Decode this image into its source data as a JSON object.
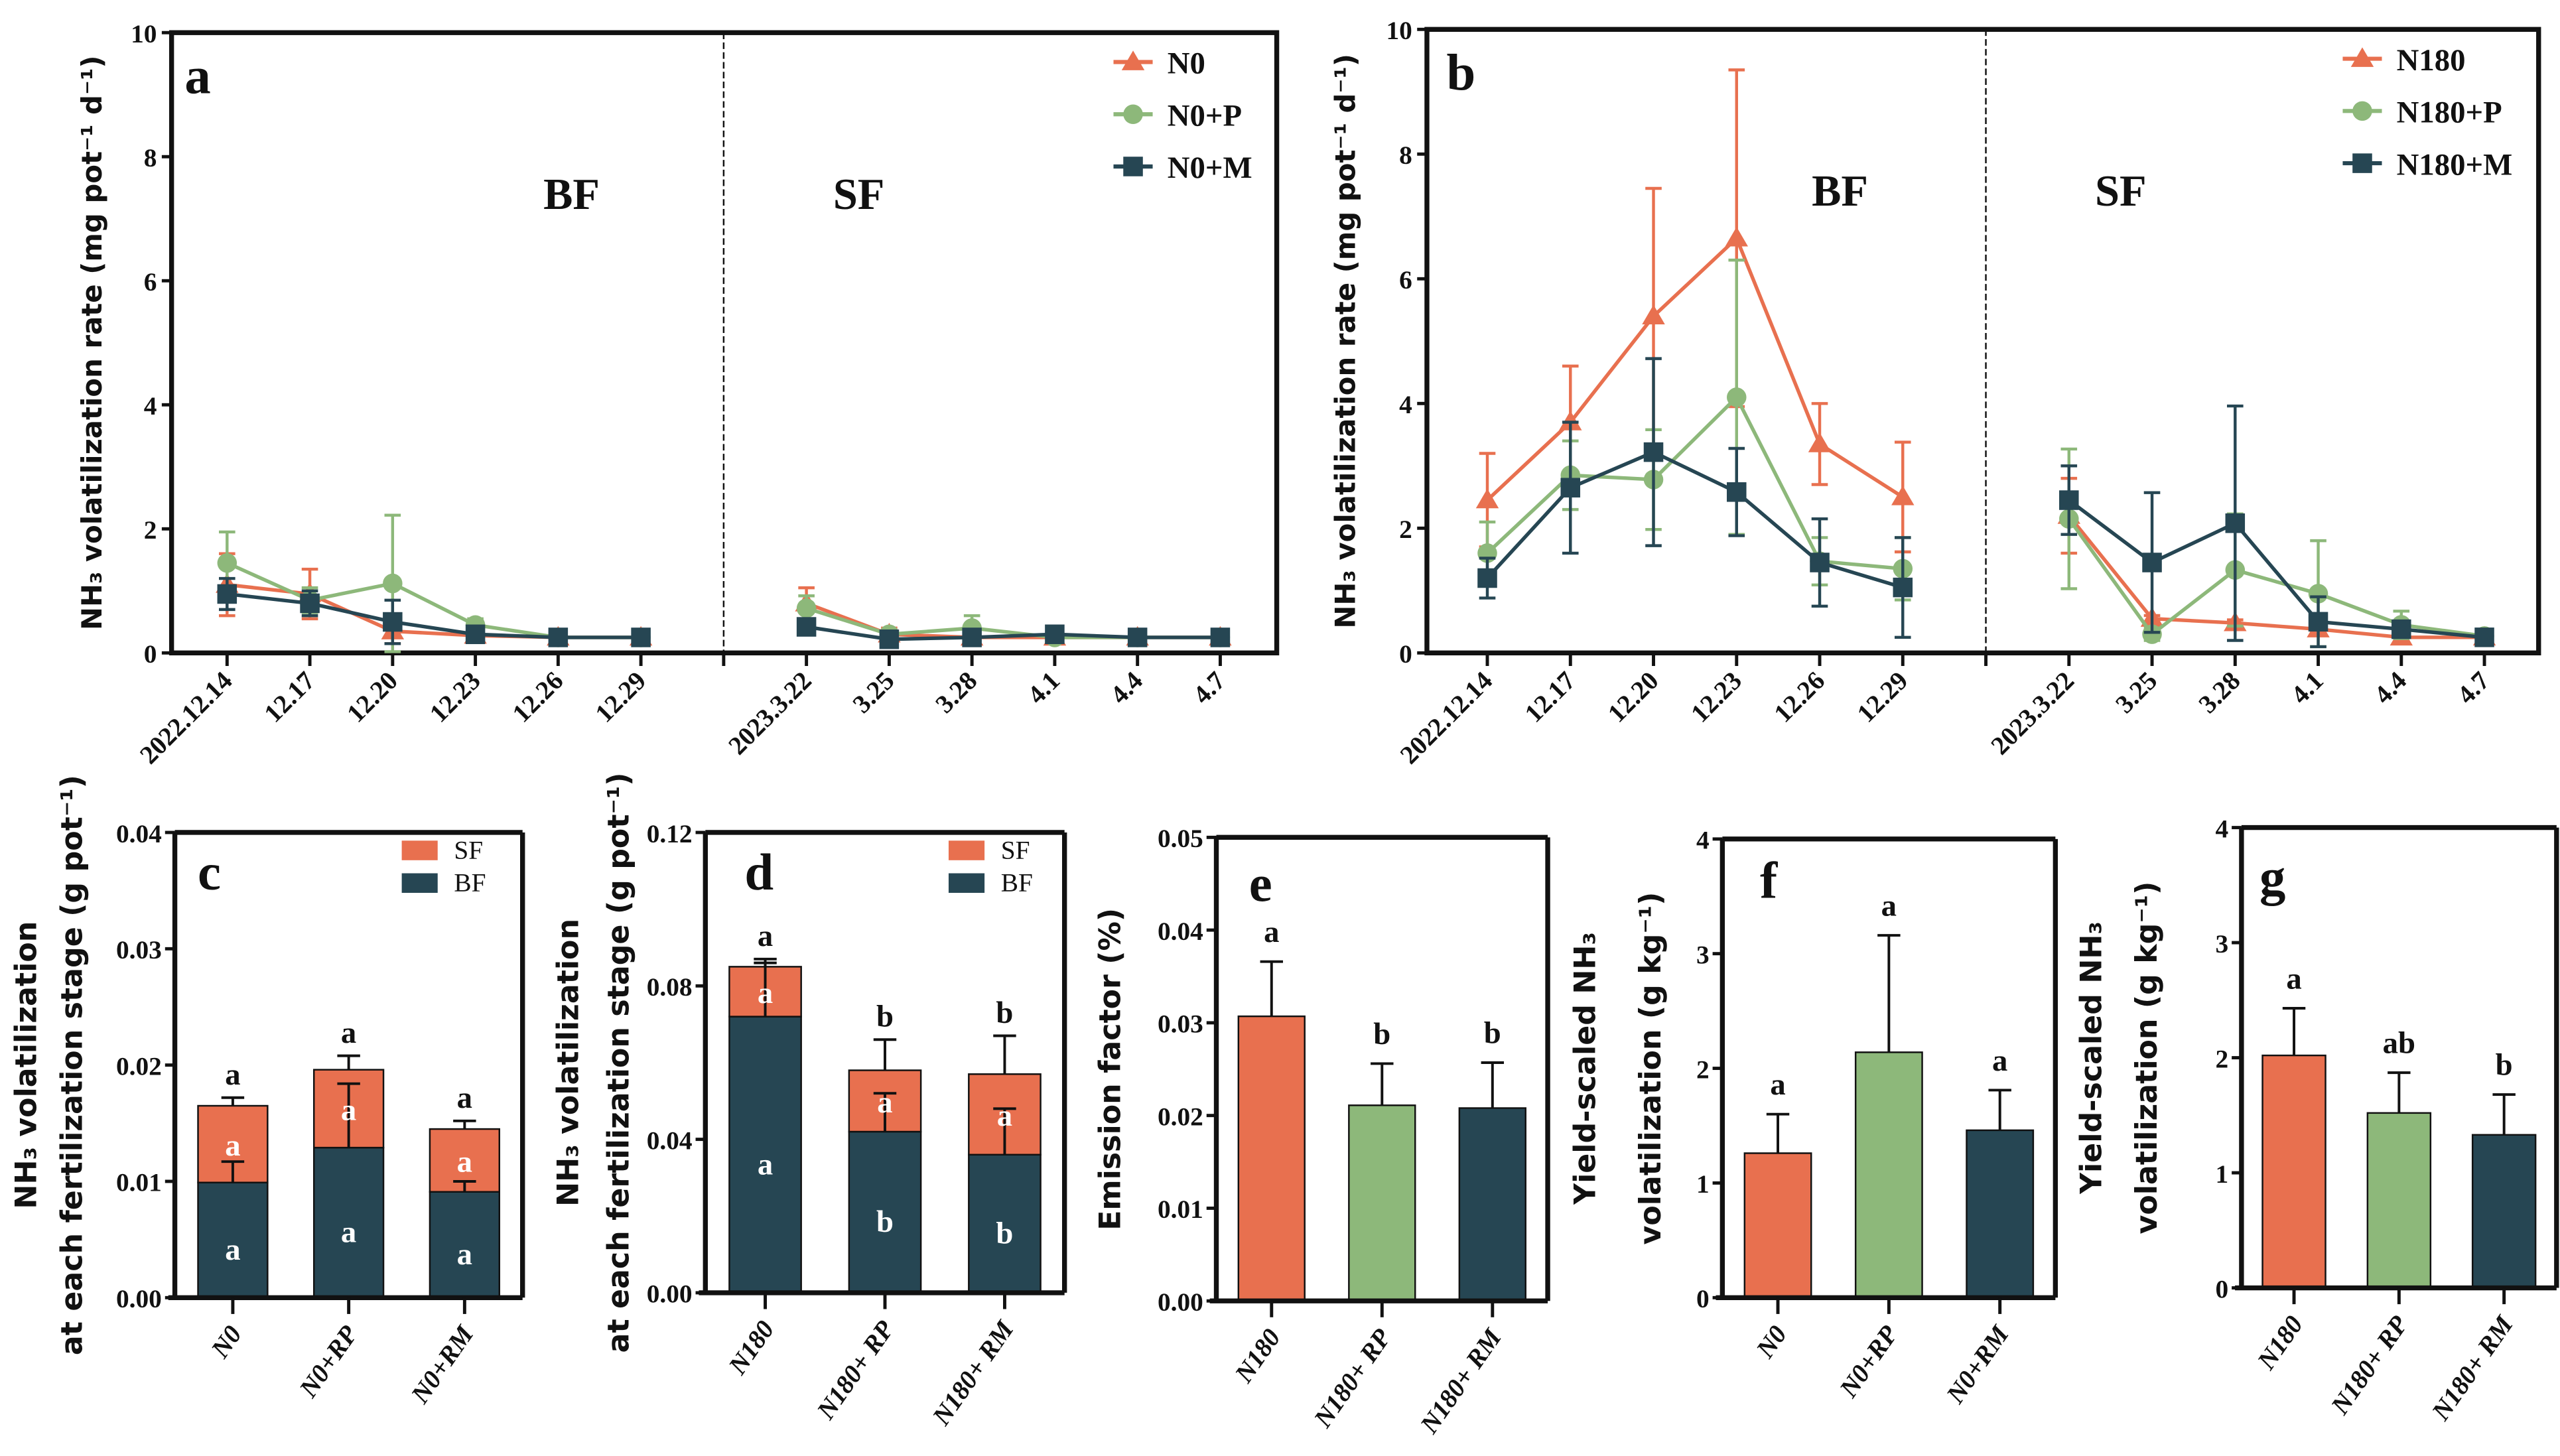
{
  "colors": {
    "orange": "#E8704F",
    "green": "#8DB87A",
    "dark": "#264653"
  },
  "chart_data": [
    {
      "panel": "a",
      "type": "line",
      "ylabel": "NH₃ volatilization rate (mg pot⁻¹ d⁻¹)",
      "ylim": [
        0,
        10
      ],
      "yticks": [
        0,
        2,
        4,
        6,
        8,
        10
      ],
      "x_labels": [
        "2022.12.14",
        "12.17",
        "12.20",
        "12.23",
        "12.26",
        "12.29",
        "2023.3.22",
        "3.25",
        "3.28",
        "4.1",
        "4.4",
        "4.7"
      ],
      "stages": [
        "BF",
        "SF"
      ],
      "legend": "top-right",
      "series": [
        {
          "name": "N0",
          "marker": "triangle",
          "color": "#E8704F",
          "values": [
            1.1,
            0.95,
            0.35,
            0.28,
            0.25,
            0.25,
            0.8,
            0.3,
            0.25,
            0.25,
            0.25,
            0.25
          ],
          "errors": [
            0.5,
            0.4,
            0.2,
            0.05,
            0.05,
            0.05,
            0.25,
            0.1,
            0.05,
            0.05,
            0.05,
            0.05
          ]
        },
        {
          "name": "N0+P",
          "marker": "circle",
          "color": "#8DB87A",
          "values": [
            1.45,
            0.85,
            1.12,
            0.45,
            0.25,
            0.25,
            0.72,
            0.3,
            0.4,
            0.25,
            0.25,
            0.25
          ],
          "errors": [
            0.5,
            0.2,
            1.1,
            0.1,
            0.05,
            0.05,
            0.2,
            0.05,
            0.2,
            0.05,
            0.05,
            0.05
          ]
        },
        {
          "name": "N0+M",
          "marker": "square",
          "color": "#264653",
          "values": [
            0.95,
            0.8,
            0.5,
            0.3,
            0.25,
            0.25,
            0.42,
            0.22,
            0.25,
            0.3,
            0.25,
            0.25
          ],
          "errors": [
            0.25,
            0.2,
            0.35,
            0.05,
            0.05,
            0.05,
            0.08,
            0.05,
            0.05,
            0.05,
            0.05,
            0.05
          ]
        }
      ]
    },
    {
      "panel": "b",
      "type": "line",
      "ylabel": "NH₃ volatilization rate (mg pot⁻¹ d⁻¹)",
      "ylim": [
        0,
        10
      ],
      "yticks": [
        0,
        2,
        4,
        6,
        8,
        10
      ],
      "x_labels": [
        "2022.12.14",
        "12.17",
        "12.20",
        "12.23",
        "12.26",
        "12.29",
        "2023.3.22",
        "3.25",
        "3.28",
        "4.1",
        "4.4",
        "4.7"
      ],
      "stages": [
        "BF",
        "SF"
      ],
      "legend": "top-right",
      "series": [
        {
          "name": "N180",
          "marker": "triangle",
          "color": "#E8704F",
          "values": [
            2.45,
            3.7,
            5.4,
            6.65,
            3.35,
            2.5,
            2.2,
            0.55,
            0.48,
            0.38,
            0.25,
            0.25
          ],
          "errors": [
            0.75,
            0.9,
            2.05,
            2.7,
            0.65,
            0.88,
            0.6,
            0.05,
            0.05,
            0.05,
            0.05,
            0.05
          ]
        },
        {
          "name": "N180+P",
          "marker": "circle",
          "color": "#8DB87A",
          "values": [
            1.6,
            2.85,
            2.78,
            4.1,
            1.47,
            1.35,
            2.15,
            0.3,
            1.33,
            0.95,
            0.45,
            0.27
          ],
          "errors": [
            0.5,
            0.55,
            0.8,
            2.2,
            0.38,
            0.5,
            1.12,
            0.1,
            0.9,
            0.85,
            0.22,
            0.05
          ]
        },
        {
          "name": "N180+M",
          "marker": "square",
          "color": "#264653",
          "values": [
            1.2,
            2.65,
            3.22,
            2.58,
            1.45,
            1.05,
            2.45,
            1.45,
            2.08,
            0.5,
            0.38,
            0.25
          ],
          "errors": [
            0.32,
            1.05,
            1.5,
            0.7,
            0.7,
            0.8,
            0.55,
            1.12,
            1.88,
            0.4,
            0.1,
            0.05
          ]
        }
      ]
    },
    {
      "panel": "c",
      "type": "stacked-bar",
      "ylabel": [
        "NH₃ volatilization",
        "at each fertilization stage (g pot⁻¹)"
      ],
      "ylim": [
        0,
        0.04
      ],
      "yticks": [
        "0.00",
        "0.01",
        "0.02",
        "0.03",
        "0.04"
      ],
      "categories": [
        "N0",
        "N0+RP",
        "N0+RM"
      ],
      "legend": "top-right",
      "series": [
        {
          "name": "BF",
          "color": "#264653",
          "values": [
            0.0099,
            0.0129,
            0.0091
          ],
          "errors": [
            0.0018,
            0.0055,
            0.0009
          ],
          "letters": [
            "a",
            "a",
            "a"
          ]
        },
        {
          "name": "SF",
          "color": "#E8704F",
          "values": [
            0.0066,
            0.0067,
            0.0054
          ],
          "errors": [
            0.0007,
            0.0012,
            0.0007
          ],
          "letters": [
            "a",
            "a",
            "a"
          ]
        }
      ],
      "total_letters": [
        "a",
        "a",
        "a"
      ]
    },
    {
      "panel": "d",
      "type": "stacked-bar",
      "ylabel": [
        "NH₃ volatilization",
        "at each fertilization stage (g pot⁻¹)"
      ],
      "ylim": [
        0,
        0.12
      ],
      "yticks": [
        "0.00",
        "0.04",
        "0.08",
        "0.12"
      ],
      "categories": [
        "N180",
        "N180+ RP",
        "N180+ RM"
      ],
      "legend": "top-right",
      "series": [
        {
          "name": "BF",
          "color": "#264653",
          "values": [
            0.072,
            0.042,
            0.036
          ],
          "errors": [
            0.014,
            0.01,
            0.012
          ],
          "letters": [
            "a",
            "b",
            "b"
          ]
        },
        {
          "name": "SF",
          "color": "#E8704F",
          "values": [
            0.013,
            0.016,
            0.021
          ],
          "errors": [
            0.002,
            0.008,
            0.01
          ],
          "letters": [
            "a",
            "a",
            "a"
          ]
        }
      ],
      "total_letters": [
        "a",
        "b",
        "b"
      ]
    },
    {
      "panel": "e",
      "type": "bar",
      "ylabel": [
        "Emission factor (%)"
      ],
      "ylim": [
        0,
        0.05
      ],
      "yticks": [
        "0.00",
        "0.01",
        "0.02",
        "0.03",
        "0.04",
        "0.05"
      ],
      "categories": [
        "N180",
        "N180+ RP",
        "N180+ RM"
      ],
      "values": [
        0.0307,
        0.0211,
        0.0208
      ],
      "errors": [
        0.0059,
        0.0045,
        0.0049
      ],
      "letters": [
        "a",
        "b",
        "b"
      ],
      "bar_colors": [
        "#E8704F",
        "#8DB87A",
        "#264653"
      ]
    },
    {
      "panel": "f",
      "type": "bar",
      "ylabel": [
        "Yield-scaled NH₃",
        "volatilization (g kg⁻¹)"
      ],
      "ylim": [
        0,
        4
      ],
      "yticks": [
        "0",
        "1",
        "2",
        "3",
        "4"
      ],
      "categories": [
        "N0",
        "N0+RP",
        "N0+RM"
      ],
      "values": [
        1.26,
        2.14,
        1.46
      ],
      "errors": [
        0.34,
        1.02,
        0.35
      ],
      "letters": [
        "a",
        "a",
        "a"
      ],
      "bar_colors": [
        "#E8704F",
        "#8DB87A",
        "#264653"
      ]
    },
    {
      "panel": "g",
      "type": "bar",
      "ylabel": [
        "Yield-scaled NH₃",
        "volatilization (g kg⁻¹)"
      ],
      "ylim": [
        0,
        4
      ],
      "yticks": [
        "0",
        "1",
        "2",
        "3",
        "4"
      ],
      "categories": [
        "N180",
        "N180+ RP",
        "N180+ RM"
      ],
      "values": [
        2.02,
        1.52,
        1.33
      ],
      "errors": [
        0.41,
        0.35,
        0.35
      ],
      "letters": [
        "a",
        "ab",
        "b"
      ],
      "bar_colors": [
        "#E8704F",
        "#8DB87A",
        "#264653"
      ]
    }
  ]
}
